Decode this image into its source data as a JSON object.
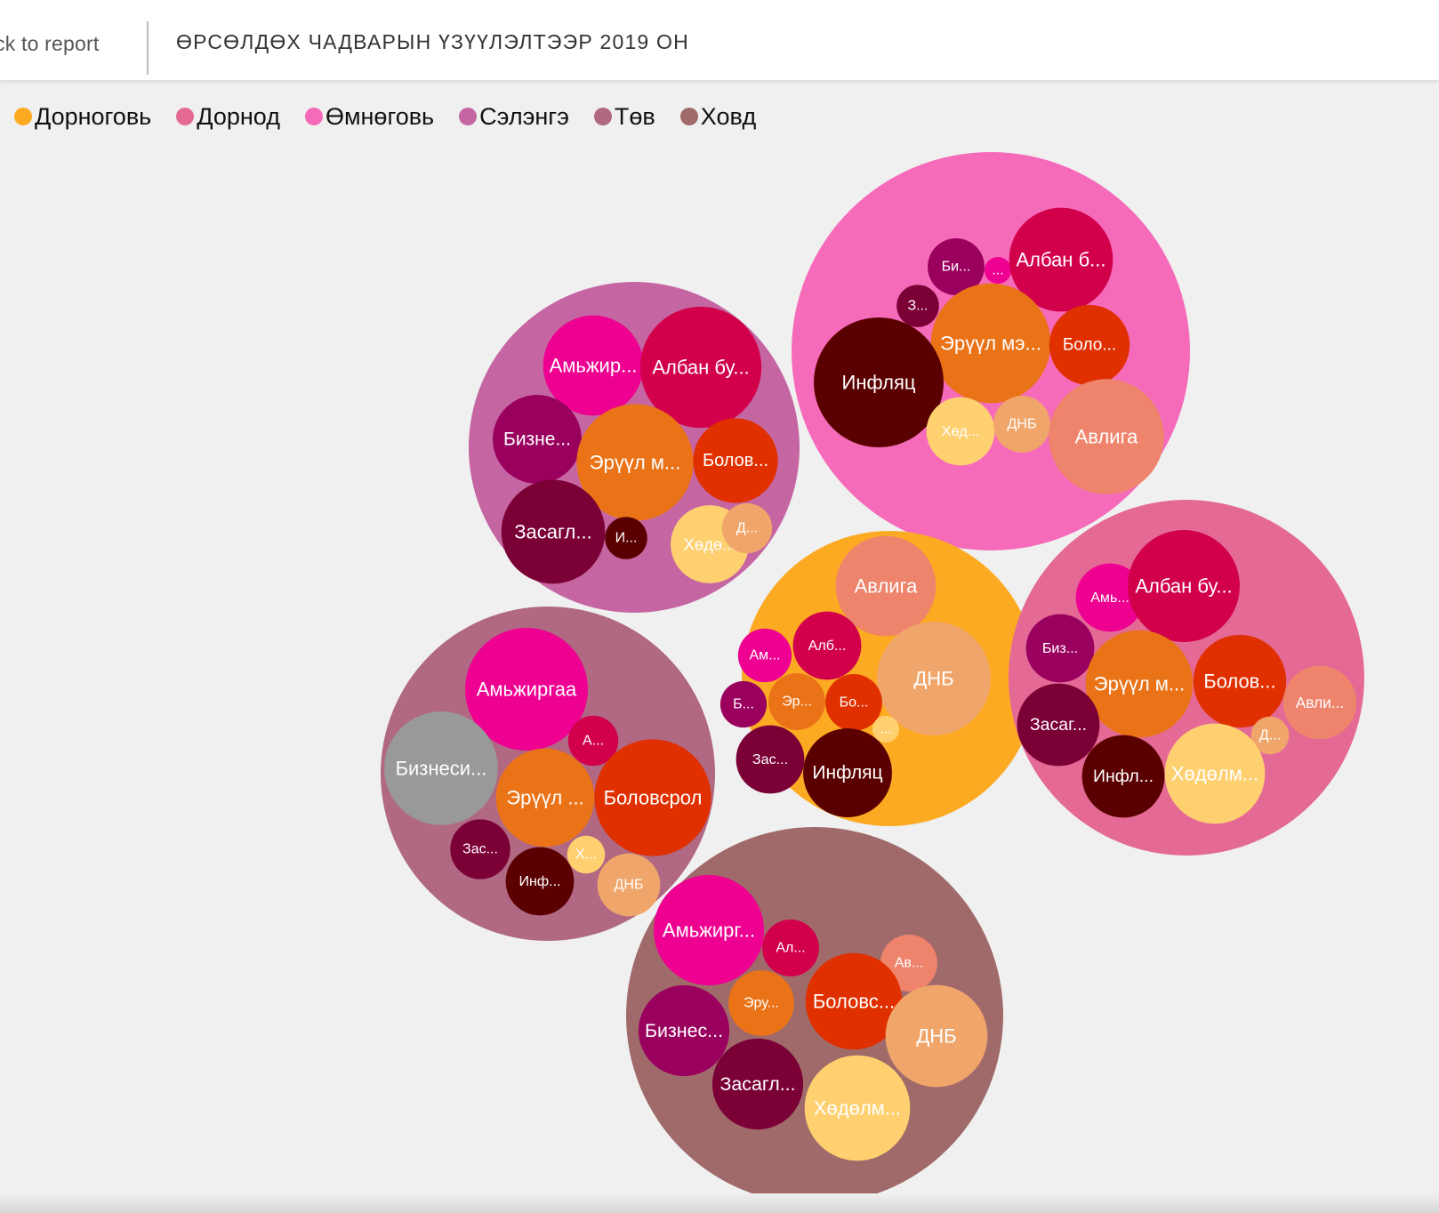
{
  "header": {
    "back_label": "ck to report",
    "title": "ӨРСӨЛДӨХ ЧАДВАРЫН ҮЗҮҮЛЭЛТЭЭР 2019 ОН"
  },
  "colors": {
    "Дорноговь": "#fdaa23",
    "Дорнод": "#e46a95",
    "Өмнөговь": "#f56bba",
    "Сэлэнгэ": "#c566a3",
    "Төв": "#b06883",
    "Ховд": "#a06a6a",
    "Амьжиргаа": "#ee0090",
    "Албан бус": "#d2004b",
    "Бизнес": "#9a005e",
    "Эрүүл мэнд": "#ea7318",
    "Боловсрол": "#e03000",
    "Засаглал": "#7a0035",
    "Инфляц": "#5a0000",
    "Хөдөлмөр": "#ffd070",
    "ДНБ": "#f0a66a",
    "Авлига": "#ee846c"
  },
  "chart_data": {
    "type": "bubble",
    "title": "",
    "legend": {
      "placement": "top-left",
      "entries": [
        "Дорноговь",
        "Дорнод",
        "Өмнөговь",
        "Сэлэнгэ",
        "Төв",
        "Ховд"
      ]
    },
    "groups": [
      {
        "name": "Өмнөговь",
        "circles": [
          {
            "category": "Бизнес",
            "label": "Би...",
            "value": 9
          },
          {
            "category": "Амьжиргаа",
            "label": "...",
            "value": 2
          },
          {
            "category": "Албан бус",
            "label": "Албан б...",
            "value": 30
          },
          {
            "category": "Засаглал",
            "label": "З...",
            "value": 5
          },
          {
            "category": "Эрүүл мэнд",
            "label": "Эрүүл мэ...",
            "value": 40
          },
          {
            "category": "Боловсрол",
            "label": "Боло...",
            "value": 18
          },
          {
            "category": "Инфляц",
            "label": "Инфляц",
            "value": 47
          },
          {
            "category": "Хөдөлмөр",
            "label": "Хөд...",
            "value": 13
          },
          {
            "category": "ДНБ",
            "label": "ДНБ",
            "value": 9
          },
          {
            "category": "Авлига",
            "label": "Авлига",
            "value": 37
          }
        ]
      },
      {
        "name": "Сэлэнгэ",
        "circles": [
          {
            "category": "Амьжиргаа",
            "label": "Амьжир...",
            "value": 28
          },
          {
            "category": "Албан бус",
            "label": "Албан бу...",
            "value": 41
          },
          {
            "category": "Бизнес",
            "label": "Бизне...",
            "value": 22
          },
          {
            "category": "Эрүүл мэнд",
            "label": "Эрүүл м...",
            "value": 38
          },
          {
            "category": "Боловсрол",
            "label": "Болов...",
            "value": 20
          },
          {
            "category": "Засаглал",
            "label": "Засагл...",
            "value": 30
          },
          {
            "category": "Инфляц",
            "label": "И...",
            "value": 5
          },
          {
            "category": "Хөдөлмөр",
            "label": "Хөдө...",
            "value": 17
          },
          {
            "category": "ДНБ",
            "label": "Д...",
            "value": 7
          }
        ]
      },
      {
        "name": "Дорноговь",
        "circles": [
          {
            "category": "Авлига",
            "label": "Авлига",
            "value": 28
          },
          {
            "category": "Амьжиргаа",
            "label": "Ам...",
            "value": 8
          },
          {
            "category": "Албан бус",
            "label": "Алб...",
            "value": 13
          },
          {
            "category": "ДНБ",
            "label": "ДНБ",
            "value": 36
          },
          {
            "category": "Бизнес",
            "label": "Б...",
            "value": 6
          },
          {
            "category": "Эрүүл мэнд",
            "label": "Эр...",
            "value": 9
          },
          {
            "category": "Боловсрол",
            "label": "Бо...",
            "value": 9
          },
          {
            "category": "Хөдөлмөр",
            "label": "...",
            "value": 2
          },
          {
            "category": "Засаглал",
            "label": "Зас...",
            "value": 13
          },
          {
            "category": "Инфляц",
            "label": "Инфляц",
            "value": 22
          }
        ]
      },
      {
        "name": "Дорнод",
        "circles": [
          {
            "category": "Амьжиргаа",
            "label": "Амь...",
            "value": 13
          },
          {
            "category": "Албан бус",
            "label": "Албан бу...",
            "value": 35
          },
          {
            "category": "Бизнес",
            "label": "Биз...",
            "value": 13
          },
          {
            "category": "Эрүүл мэнд",
            "label": "Эрүүл м...",
            "value": 32
          },
          {
            "category": "Боловсрол",
            "label": "Болов...",
            "value": 24
          },
          {
            "category": "Авлига",
            "label": "Авли...",
            "value": 15
          },
          {
            "category": "Засаглал",
            "label": "Засаг...",
            "value": 19
          },
          {
            "category": "ДНБ",
            "label": "Д...",
            "value": 4
          },
          {
            "category": "Инфляц",
            "label": "Инфл...",
            "value": 19
          },
          {
            "category": "Хөдөлмөр",
            "label": "Хөдөлм...",
            "value": 28
          }
        ]
      },
      {
        "name": "Төв",
        "circles": [
          {
            "category": "Амьжиргаа",
            "label": "Амьжиргаа",
            "value": 42
          },
          {
            "category": "Албан бус",
            "label": "А...",
            "value": 7
          },
          {
            "category": "Бизнеси",
            "label": "Бизнеси...",
            "value": 36
          },
          {
            "category": "Эрүүл мэнд",
            "label": "Эрүүл ...",
            "value": 27
          },
          {
            "category": "Боловсрол",
            "label": "Боловсрол",
            "value": 38
          },
          {
            "category": "Засаглал",
            "label": "Зас...",
            "value": 10
          },
          {
            "category": "Хөдөлмөр",
            "label": "Х...",
            "value": 4
          },
          {
            "category": "Инфляц",
            "label": "Инф...",
            "value": 13
          },
          {
            "category": "ДНБ",
            "label": "ДНБ",
            "value": 11
          }
        ]
      },
      {
        "name": "Ховд",
        "circles": [
          {
            "category": "Амьжиргаа",
            "label": "Амьжирг...",
            "value": 34
          },
          {
            "category": "Албан бус",
            "label": "Ал...",
            "value": 9
          },
          {
            "category": "Авлига",
            "label": "Ав...",
            "value": 9
          },
          {
            "category": "Эрүүл мэнд",
            "label": "Эру...",
            "value": 12
          },
          {
            "category": "Боловсрол",
            "label": "Боловс...",
            "value": 26
          },
          {
            "category": "Бизнес",
            "label": "Бизнес...",
            "value": 23
          },
          {
            "category": "ДНБ",
            "label": "ДНБ",
            "value": 29
          },
          {
            "category": "Засаглал",
            "label": "Засагл...",
            "value": 23
          },
          {
            "category": "Хөдөлмөр",
            "label": "Хөдөлм...",
            "value": 31
          }
        ]
      }
    ]
  }
}
